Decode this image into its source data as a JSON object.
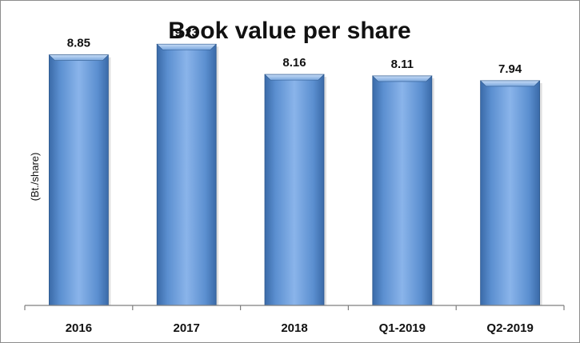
{
  "chart_data": {
    "type": "bar",
    "title": "Book value per share",
    "ylabel": "(Bt./share)",
    "xlabel": "",
    "categories": [
      "2016",
      "2017",
      "2018",
      "Q1-2019",
      "Q2-2019"
    ],
    "values": [
      8.85,
      9.23,
      8.16,
      8.11,
      7.94
    ],
    "data_labels": [
      "8.85",
      "9.23",
      "8.16",
      "8.11",
      "7.94"
    ],
    "ylim": [
      0,
      10
    ],
    "grid": false,
    "legend": "none",
    "bar_color": "#4f81bd"
  }
}
